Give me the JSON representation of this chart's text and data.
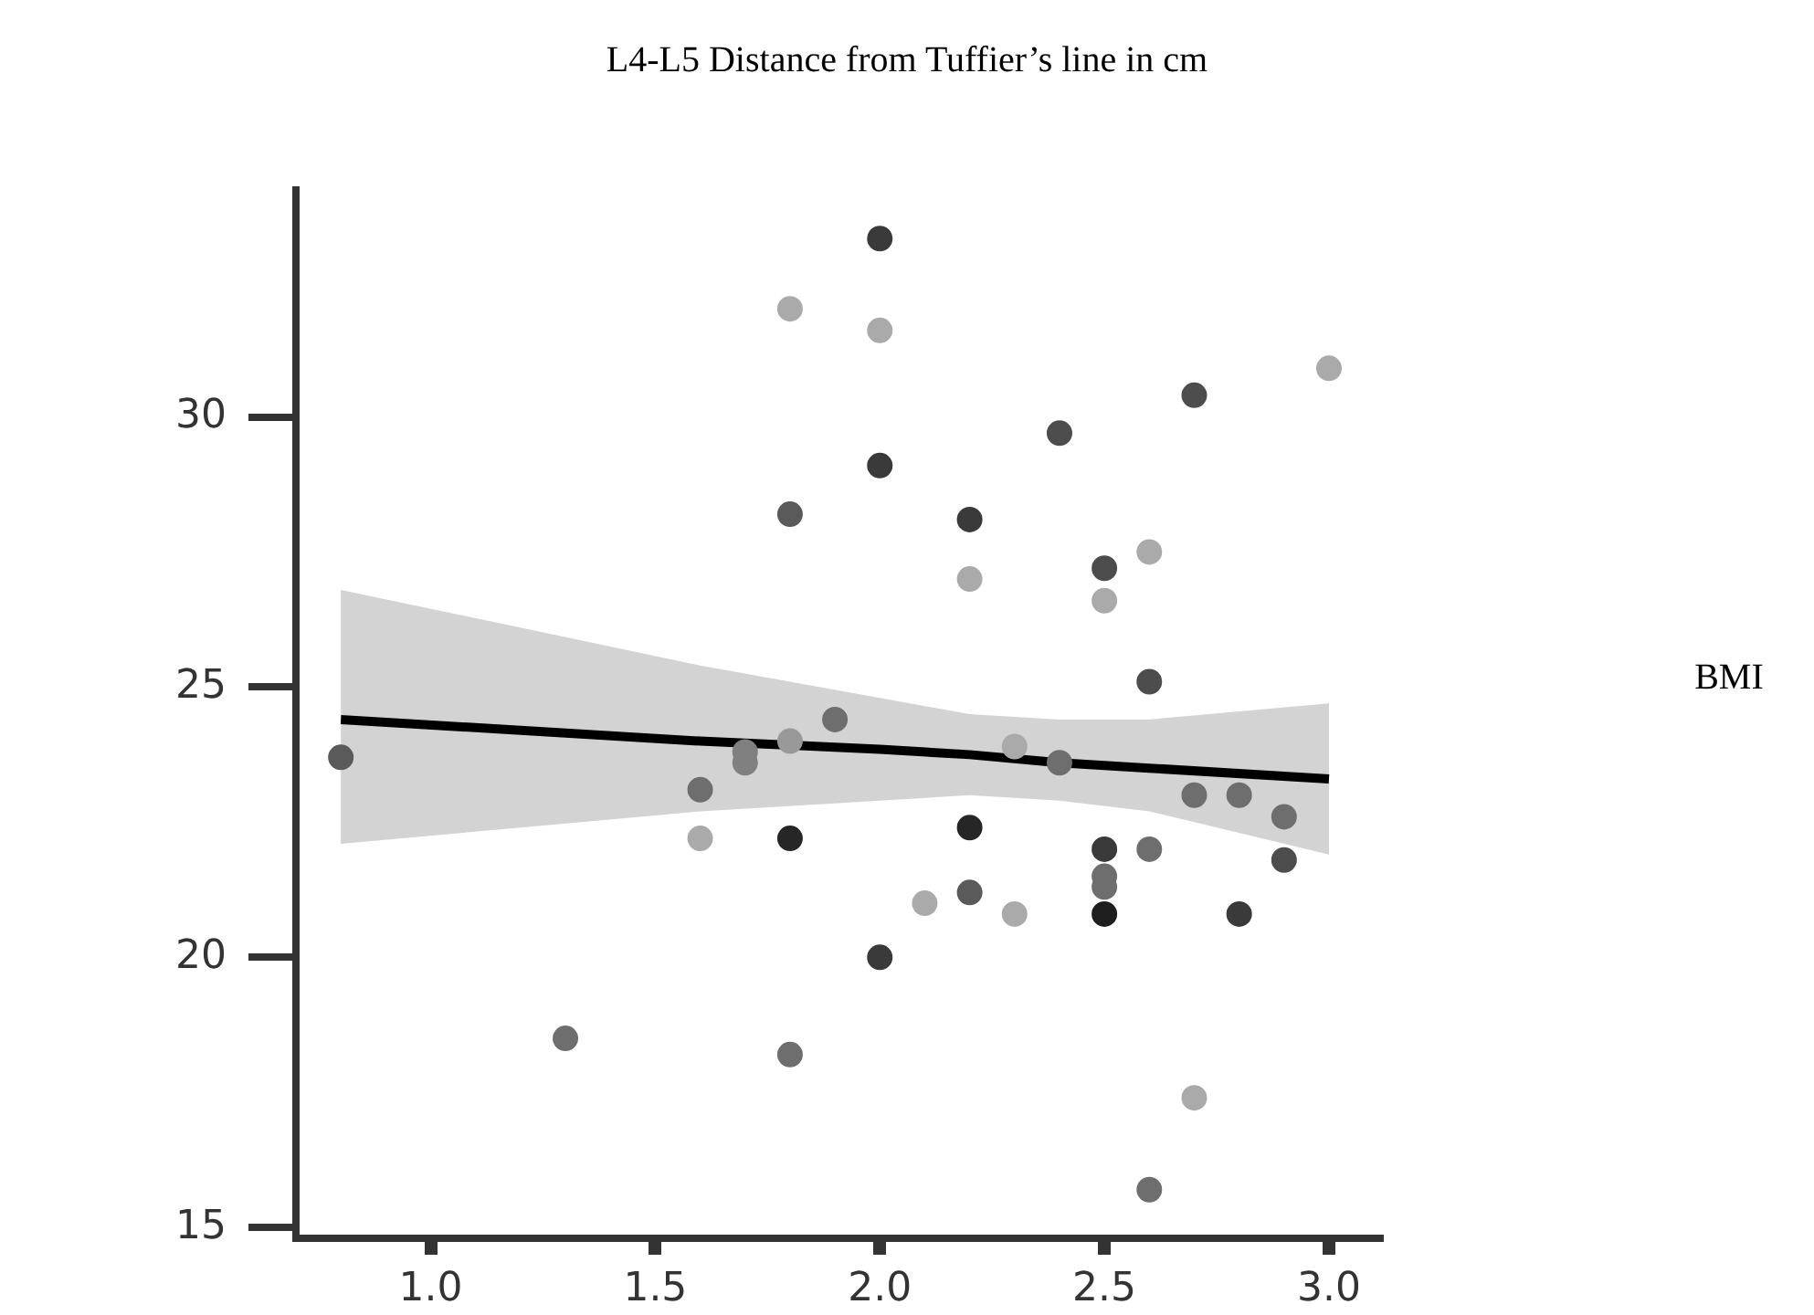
{
  "chart_data": {
    "type": "scatter",
    "xlabel": "L4-L5 Distance from Tuffier’s line in cm",
    "annotations": [
      "BMI"
    ],
    "xlim": [
      0.7,
      3.12
    ],
    "xticks": [
      {
        "value": 1,
        "label": "1.0"
      },
      1.5,
      {
        "value": 2,
        "label": "2.0"
      },
      2.5,
      {
        "value": 3,
        "label": "3.0"
      }
    ],
    "ylim": [
      14.8,
      34.2
    ],
    "yticks": [
      15,
      20,
      25,
      30
    ],
    "grid": false,
    "legend": false,
    "marker": "circle",
    "series": [
      {
        "x": [
          0.8,
          1.3,
          1.6,
          1.6,
          1.7,
          1.7,
          1.8,
          1.8,
          1.8,
          1.8,
          1.8,
          1.9,
          2.0,
          2.0,
          2.0,
          2.0,
          2.1,
          2.2,
          2.2,
          2.2,
          2.2,
          2.3,
          2.3,
          2.4,
          2.4,
          2.5,
          2.5,
          2.5,
          2.5,
          2.5,
          2.5,
          2.6,
          2.6,
          2.6,
          2.6,
          2.7,
          2.7,
          2.7,
          2.8,
          2.8,
          2.9,
          2.9,
          3.0
        ],
        "values": [
          23.7,
          18.5,
          23.1,
          22.2,
          23.8,
          23.6,
          32.0,
          28.2,
          24.0,
          22.2,
          18.2,
          24.4,
          33.3,
          31.6,
          29.1,
          20.0,
          21.0,
          28.1,
          27.0,
          22.4,
          21.2,
          23.9,
          20.8,
          29.7,
          23.6,
          27.2,
          26.6,
          22.0,
          21.5,
          21.3,
          20.8,
          27.5,
          25.1,
          22.0,
          15.7,
          30.4,
          23.0,
          17.4,
          23.0,
          20.8,
          22.6,
          21.8,
          30.9
        ],
        "colors": [
          "#5a5a5a",
          "#6e6e6e",
          "#6e6e6e",
          "#aaaaaa",
          "#808080",
          "#808080",
          "#aaaaaa",
          "#5a5a5a",
          "#999999",
          "#262626",
          "#6e6e6e",
          "#6e6e6e",
          "#3a3a3a",
          "#aaaaaa",
          "#3a3a3a",
          "#3a3a3a",
          "#aaaaaa",
          "#3a3a3a",
          "#aaaaaa",
          "#262626",
          "#5a5a5a",
          "#aaaaaa",
          "#aaaaaa",
          "#4d4d4d",
          "#6e6e6e",
          "#4d4d4d",
          "#aaaaaa",
          "#3a3a3a",
          "#6e6e6e",
          "#6e6e6e",
          "#1e1e1e",
          "#aaaaaa",
          "#4d4d4d",
          "#6e6e6e",
          "#6e6e6e",
          "#4d4d4d",
          "#6e6e6e",
          "#aaaaaa",
          "#6e6e6e",
          "#3a3a3a",
          "#6e6e6e",
          "#4d4d4d",
          "#aaaaaa"
        ]
      },
      {
        "type": "line",
        "marker": "none",
        "color": "#000000",
        "x": [
          0.8,
          1.2,
          1.6,
          2.0,
          2.2,
          2.4,
          2.6,
          3.0
        ],
        "values": [
          24.4,
          24.2,
          24.0,
          23.85,
          23.75,
          23.6,
          23.5,
          23.3
        ],
        "lower": [
          22.1,
          22.4,
          22.7,
          22.9,
          23.0,
          22.9,
          22.7,
          21.9
        ],
        "upper": [
          26.8,
          26.1,
          25.4,
          24.8,
          24.5,
          24.4,
          24.4,
          24.7
        ]
      }
    ]
  }
}
